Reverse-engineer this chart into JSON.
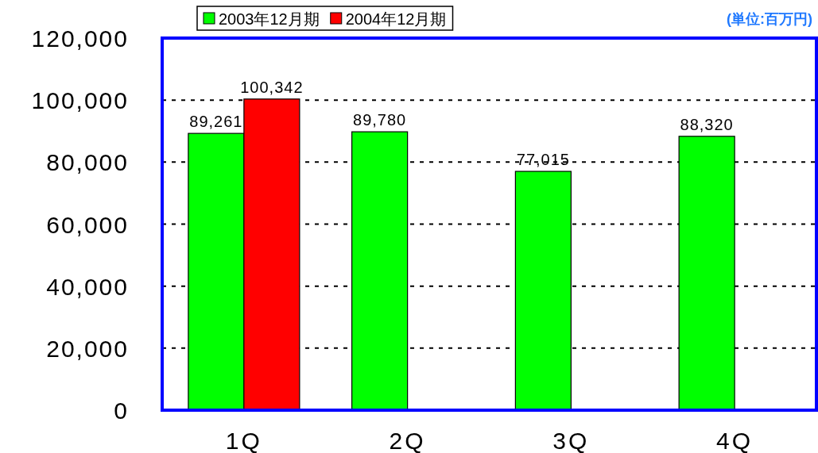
{
  "chart_data": {
    "type": "bar",
    "categories": [
      "1Q",
      "2Q",
      "3Q",
      "4Q"
    ],
    "series": [
      {
        "name": "2003年12月期",
        "color": "#00ff00",
        "values": [
          89261,
          89780,
          77015,
          88320
        ],
        "value_labels": [
          "89,261",
          "89,780",
          "77,015",
          "88,320"
        ]
      },
      {
        "name": "2004年12月期",
        "color": "#ff0000",
        "values": [
          100342,
          null,
          null,
          null
        ],
        "value_labels": [
          "100,342",
          null,
          null,
          null
        ]
      }
    ],
    "ylim": [
      0,
      120000
    ],
    "yticks": [
      {
        "value": 0,
        "label": "0"
      },
      {
        "value": 20000,
        "label": "20,000"
      },
      {
        "value": 40000,
        "label": "40,000"
      },
      {
        "value": 60000,
        "label": "60,000"
      },
      {
        "value": 80000,
        "label": "80,000"
      },
      {
        "value": 100000,
        "label": "100,000"
      },
      {
        "value": 120000,
        "label": "120,000"
      }
    ],
    "grid": "y",
    "legend": "top",
    "annotations": [
      "(単位:百万円)"
    ]
  }
}
